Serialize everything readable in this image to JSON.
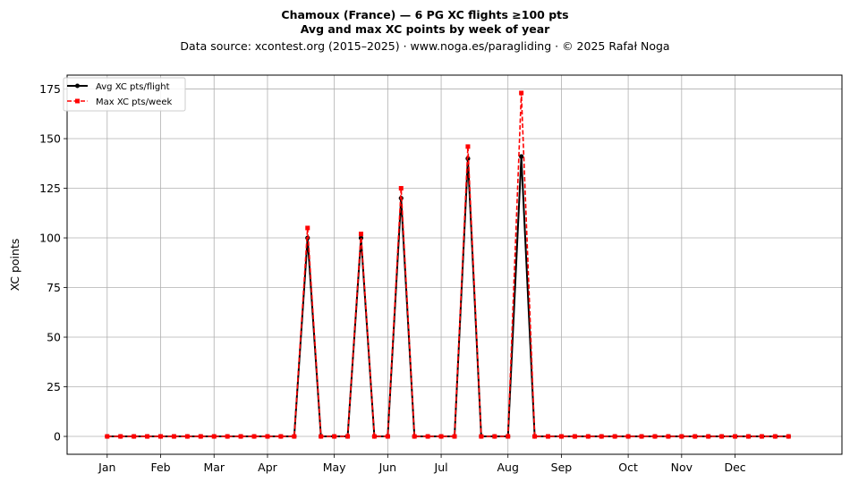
{
  "chart_data": {
    "type": "line",
    "title": "Chamoux (France)  —  6 PG XC flights ≥100 pts",
    "subtitle": "Avg and max XC points by week of year",
    "source": "Data source: xcontest.org (2015–2025)  ·  www.noga.es/paragliding  ·  © 2025 Rafał Noga",
    "xlabel": "",
    "ylabel": "XC points",
    "x_unit": "week of year",
    "xlim": [
      -2,
      56
    ],
    "ylim": [
      -9,
      182
    ],
    "yticks": [
      0,
      25,
      50,
      75,
      100,
      125,
      150,
      175
    ],
    "xticks": [
      {
        "label": "Jan",
        "week": 1
      },
      {
        "label": "Feb",
        "week": 5
      },
      {
        "label": "Mar",
        "week": 9
      },
      {
        "label": "Apr",
        "week": 13
      },
      {
        "label": "May",
        "week": 18
      },
      {
        "label": "Jun",
        "week": 22
      },
      {
        "label": "Jul",
        "week": 26
      },
      {
        "label": "Aug",
        "week": 31
      },
      {
        "label": "Sep",
        "week": 35
      },
      {
        "label": "Oct",
        "week": 40
      },
      {
        "label": "Nov",
        "week": 44
      },
      {
        "label": "Dec",
        "week": 48
      }
    ],
    "grid": true,
    "legend": "top-left",
    "x": [
      1,
      2,
      3,
      4,
      5,
      6,
      7,
      8,
      9,
      10,
      11,
      12,
      13,
      14,
      15,
      16,
      17,
      18,
      19,
      20,
      21,
      22,
      23,
      24,
      25,
      26,
      27,
      28,
      29,
      30,
      31,
      32,
      33,
      34,
      35,
      36,
      37,
      38,
      39,
      40,
      41,
      42,
      43,
      44,
      45,
      46,
      47,
      48,
      49,
      50,
      51,
      52
    ],
    "series": [
      {
        "name": "Avg XC pts/flight",
        "color": "#000000",
        "style": "solid",
        "marker": "circle",
        "values": [
          0,
          0,
          0,
          0,
          0,
          0,
          0,
          0,
          0,
          0,
          0,
          0,
          0,
          0,
          0,
          100,
          0,
          0,
          0,
          100,
          0,
          0,
          120,
          0,
          0,
          0,
          0,
          140,
          0,
          0,
          0,
          141,
          0,
          0,
          0,
          0,
          0,
          0,
          0,
          0,
          0,
          0,
          0,
          0,
          0,
          0,
          0,
          0,
          0,
          0,
          0,
          0
        ]
      },
      {
        "name": "Max XC pts/week",
        "color": "#ff0000",
        "style": "dashed",
        "marker": "square",
        "values": [
          0,
          0,
          0,
          0,
          0,
          0,
          0,
          0,
          0,
          0,
          0,
          0,
          0,
          0,
          0,
          105,
          0,
          0,
          0,
          102,
          0,
          0,
          125,
          0,
          0,
          0,
          0,
          146,
          0,
          0,
          0,
          173,
          0,
          0,
          0,
          0,
          0,
          0,
          0,
          0,
          0,
          0,
          0,
          0,
          0,
          0,
          0,
          0,
          0,
          0,
          0,
          0
        ]
      }
    ]
  }
}
